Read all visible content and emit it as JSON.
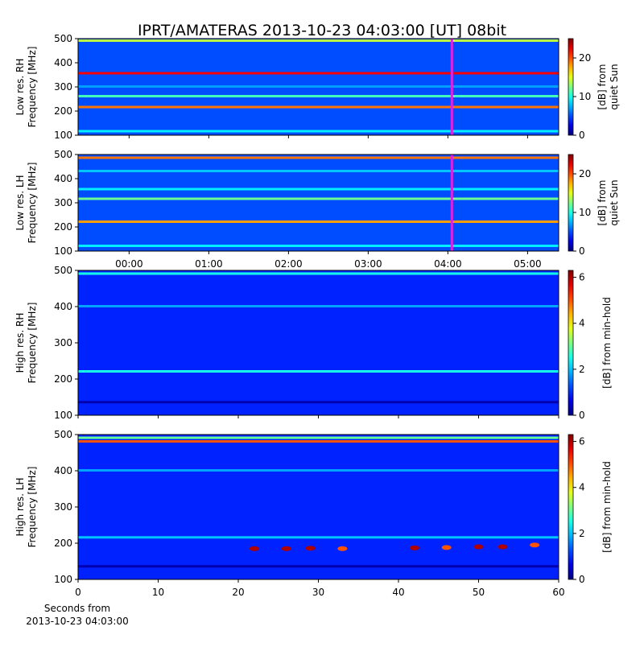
{
  "title": "IPRT/AMATERAS 2013-10-23 04:03:00 [UT]   08bit",
  "chart_data": [
    {
      "type": "spectrogram",
      "ylabel": [
        "Low res. RH",
        "Frequency [MHz]"
      ],
      "xlim": [
        -0.64,
        5.39
      ],
      "xticks": [
        0,
        1,
        2,
        3,
        4,
        5
      ],
      "ylim": [
        100,
        500
      ],
      "yticks": [
        100,
        200,
        300,
        400,
        500
      ],
      "clim": [
        0,
        25
      ],
      "cticks": [
        0,
        10,
        20
      ],
      "clabel": [
        "[dB] from",
        "quiet Sun"
      ],
      "base": 5,
      "marker": 4.05,
      "marker_color": "#e020e0",
      "bands": [
        {
          "freq": 490,
          "value": 14
        },
        {
          "freq": 355,
          "value": 22
        },
        {
          "freq": 300,
          "value": 7
        },
        {
          "freq": 260,
          "value": 11
        },
        {
          "freq": 215,
          "value": 19
        },
        {
          "freq": 115,
          "value": 9
        }
      ]
    },
    {
      "type": "spectrogram",
      "ylabel": [
        "Low res. LH",
        "Frequency [MHz]"
      ],
      "xlim": [
        -0.64,
        5.39
      ],
      "xticks": [
        {
          "value": 0,
          "label": "00:00"
        },
        {
          "value": 1,
          "label": "01:00"
        },
        {
          "value": 2,
          "label": "02:00"
        },
        {
          "value": 3,
          "label": "03:00"
        },
        {
          "value": 4,
          "label": "04:00"
        },
        {
          "value": 5,
          "label": "05:00"
        }
      ],
      "ylim": [
        100,
        500
      ],
      "yticks": [
        100,
        200,
        300,
        400,
        500
      ],
      "clim": [
        0,
        25
      ],
      "cticks": [
        0,
        10,
        20
      ],
      "clabel": [
        "[dB] from",
        "quiet Sun"
      ],
      "base": 5,
      "marker": 4.05,
      "marker_color": "#e020e0",
      "bands": [
        {
          "freq": 485,
          "value": 19
        },
        {
          "freq": 430,
          "value": 8
        },
        {
          "freq": 355,
          "value": 9
        },
        {
          "freq": 315,
          "value": 12
        },
        {
          "freq": 220,
          "value": 18
        },
        {
          "freq": 120,
          "value": 9
        }
      ]
    },
    {
      "type": "spectrogram",
      "ylabel": [
        "High res. RH",
        "Frequency [MHz]"
      ],
      "xlim": [
        0,
        60
      ],
      "xticks": [
        0,
        10,
        20,
        30,
        40,
        50,
        60
      ],
      "ylim": [
        100,
        500
      ],
      "yticks": [
        100,
        200,
        300,
        400,
        500
      ],
      "clim": [
        0,
        6.3
      ],
      "cticks": [
        0,
        2,
        4,
        6
      ],
      "clabel": [
        "[dB] from min-hold"
      ],
      "base": 1,
      "bands": [
        {
          "freq": 490,
          "value": 2.5
        },
        {
          "freq": 400,
          "value": 1.8
        },
        {
          "freq": 220,
          "value": 2.5
        },
        {
          "freq": 135,
          "value": 0.3
        }
      ]
    },
    {
      "type": "spectrogram",
      "ylabel": [
        "High res. LH",
        "Frequency [MHz]"
      ],
      "xlim": [
        0,
        60
      ],
      "xticks": [
        0,
        10,
        20,
        30,
        40,
        50,
        60
      ],
      "ylim": [
        100,
        500
      ],
      "yticks": [
        100,
        200,
        300,
        400,
        500
      ],
      "clim": [
        0,
        6.3
      ],
      "cticks": [
        0,
        2,
        4,
        6
      ],
      "clabel": [
        "[dB] from min-hold"
      ],
      "xlabel": [
        "Seconds from",
        "2013-10-23 04:03:00"
      ],
      "base": 1,
      "bands": [
        {
          "freq": 490,
          "value": 3
        },
        {
          "freq": 480,
          "value": 5
        },
        {
          "freq": 400,
          "value": 1.8
        },
        {
          "freq": 215,
          "value": 2
        },
        {
          "freq": 135,
          "value": 0.3
        }
      ],
      "spots": [
        {
          "x": 22,
          "freq": 185,
          "value": 6
        },
        {
          "x": 26,
          "freq": 185,
          "value": 6
        },
        {
          "x": 29,
          "freq": 186,
          "value": 6
        },
        {
          "x": 33,
          "freq": 185,
          "value": 5
        },
        {
          "x": 42,
          "freq": 187,
          "value": 6
        },
        {
          "x": 46,
          "freq": 188,
          "value": 5
        },
        {
          "x": 50,
          "freq": 190,
          "value": 6
        },
        {
          "x": 53,
          "freq": 190,
          "value": 6
        },
        {
          "x": 57,
          "freq": 195,
          "value": 5
        }
      ]
    }
  ]
}
